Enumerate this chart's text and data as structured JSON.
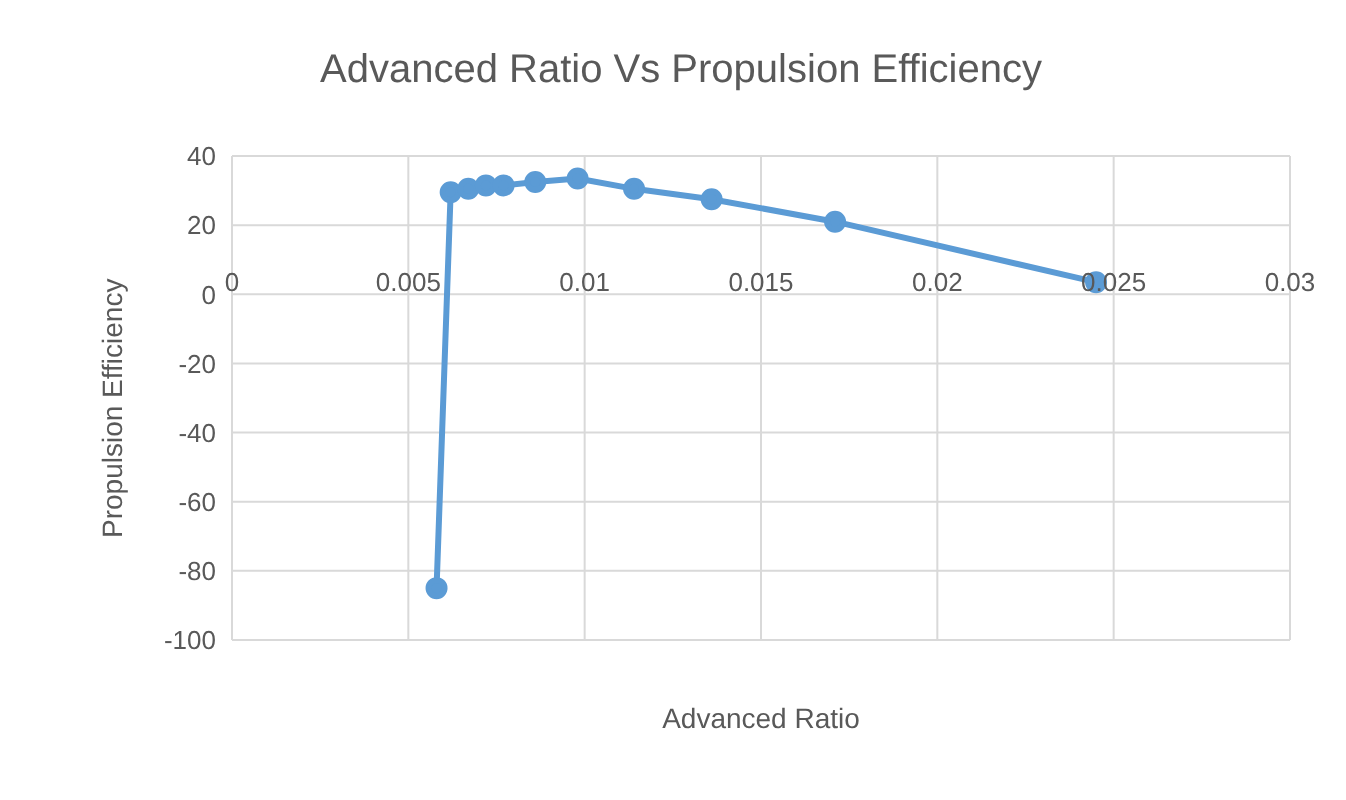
{
  "chart_data": {
    "type": "line",
    "title": "Advanced Ratio Vs Propulsion Efficiency",
    "xlabel": "Advanced Ratio",
    "ylabel": "Propulsion Efficiency",
    "x": [
      0.0058,
      0.0062,
      0.0067,
      0.0072,
      0.0077,
      0.0086,
      0.0098,
      0.0114,
      0.0136,
      0.0171,
      0.0245
    ],
    "series": [
      {
        "color": "#5b9bd5",
        "values": [
          -85,
          29.5,
          30.5,
          31.5,
          31.5,
          32.5,
          33.5,
          30.5,
          27.5,
          21,
          3.5
        ]
      }
    ],
    "xlim": [
      0,
      0.03
    ],
    "xticks": [
      0,
      0.005,
      0.01,
      0.015,
      0.02,
      0.025,
      0.03
    ],
    "ylim": [
      -100,
      40
    ],
    "yticks": [
      -100,
      -80,
      -60,
      -40,
      -20,
      0,
      20,
      40
    ],
    "grid": true,
    "marker": "circle",
    "line_style": "solid"
  }
}
